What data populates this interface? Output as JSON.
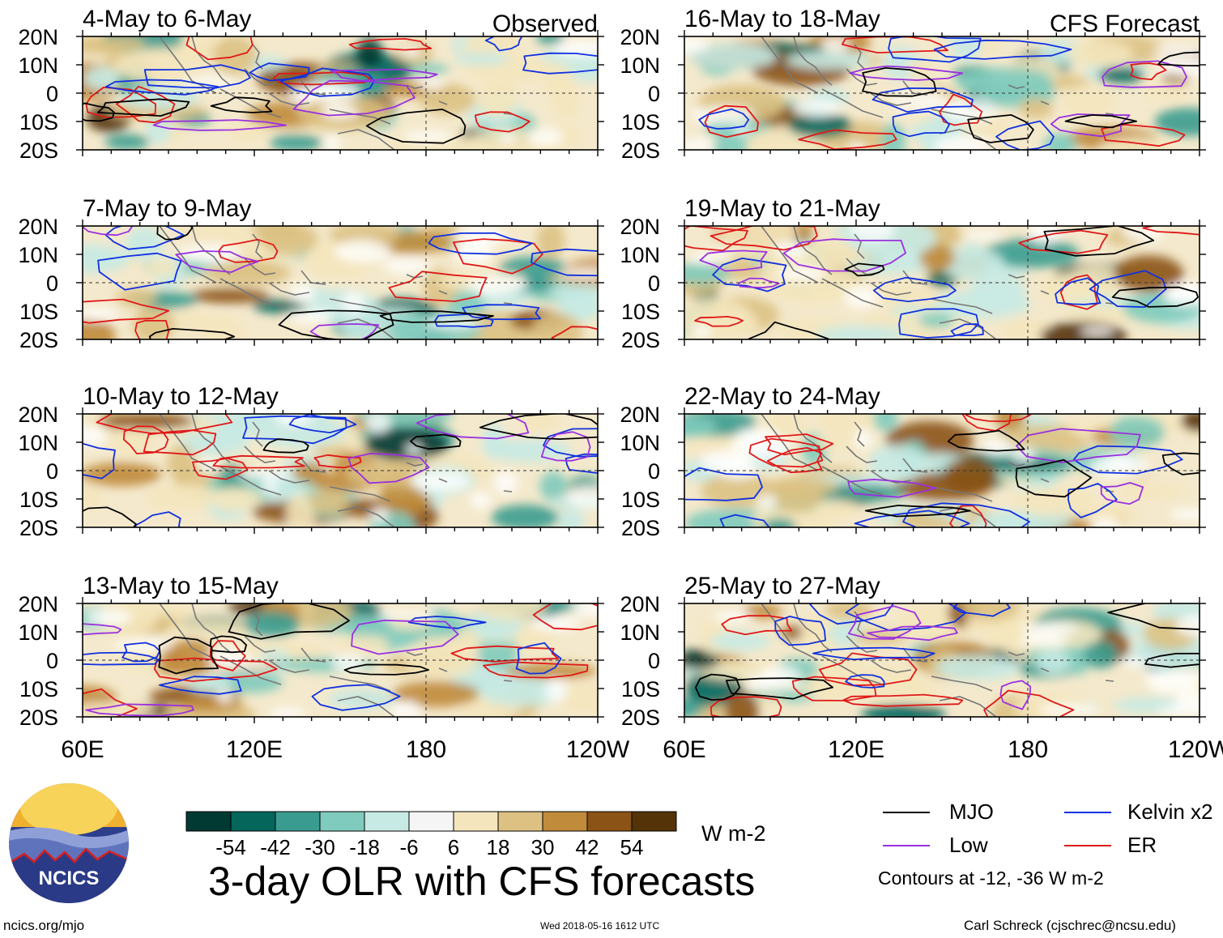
{
  "colors": {
    "mjo": "#000000",
    "kelvin": "#1030e0",
    "low": "#9b30e0",
    "er": "#e01818",
    "dashed_equator": "#333333",
    "coastline": "#777777"
  },
  "panels": [
    {
      "period": "4-May to 6-May",
      "tag": "Observed"
    },
    {
      "period": "16-May to 18-May",
      "tag": "CFS Forecast"
    },
    {
      "period": "7-May to 9-May",
      "tag": ""
    },
    {
      "period": "19-May to 21-May",
      "tag": ""
    },
    {
      "period": "10-May to 12-May",
      "tag": ""
    },
    {
      "period": "22-May to 24-May",
      "tag": ""
    },
    {
      "period": "13-May to 15-May",
      "tag": ""
    },
    {
      "period": "25-May to 27-May",
      "tag": ""
    }
  ],
  "axes": {
    "lat_labels": [
      "20N",
      "10N",
      "0",
      "10S",
      "20S"
    ],
    "lon_labels": [
      "60E",
      "120E",
      "180",
      "120W"
    ],
    "lat_range": [
      -20,
      20
    ],
    "lon_range": [
      60,
      240
    ]
  },
  "colorbar": {
    "ticks": [
      "-54",
      "-42",
      "-30",
      "-18",
      "-6",
      "6",
      "18",
      "30",
      "42",
      "54"
    ],
    "colors": [
      "#013a32",
      "#05665c",
      "#3a9c90",
      "#7fcbbd",
      "#c7eae4",
      "#f5f5f5",
      "#f4e5bd",
      "#dcc183",
      "#c08b3a",
      "#8b5315",
      "#553308"
    ],
    "units": "W m-2"
  },
  "title": "3-day OLR with CFS forecasts",
  "legend": {
    "items": [
      {
        "label": "MJO",
        "color": "#000000"
      },
      {
        "label": "Kelvin x2",
        "color": "#1030e0"
      },
      {
        "label": "Low",
        "color": "#9b30e0"
      },
      {
        "label": "ER",
        "color": "#e01818"
      }
    ],
    "note": "Contours at -12, -36 W m-2"
  },
  "logo": {
    "text": "NCICS"
  },
  "footer": {
    "site": "ncics.org/mjo",
    "timestamp": "Wed 2018-05-16 1612 UTC",
    "author": "Carl Schreck (cjschrec@ncsu.edu)"
  }
}
